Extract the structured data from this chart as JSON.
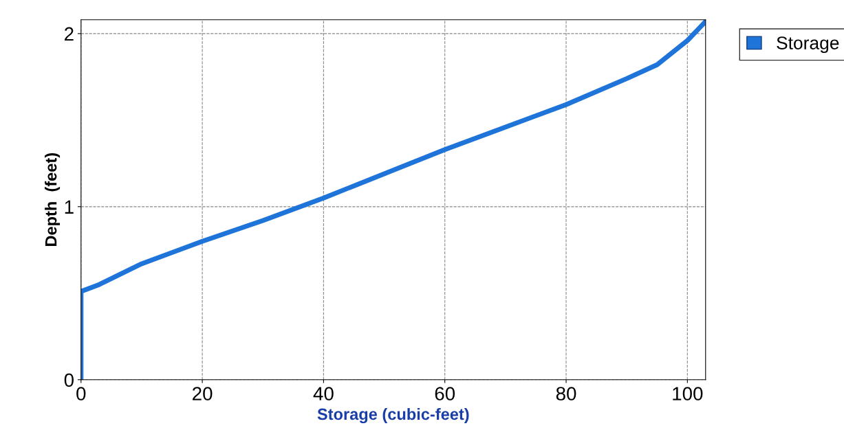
{
  "chart_data": {
    "type": "line",
    "xlabel": "Storage (cubic-feet)",
    "ylabel": "Depth  (feet)",
    "x": [
      0,
      0,
      3,
      10,
      20,
      30,
      40,
      50,
      60,
      70,
      80,
      90,
      95,
      100,
      103
    ],
    "series": [
      {
        "name": "Storage",
        "color": "#1f74d9",
        "values": [
          0,
          0.51,
          0.55,
          0.67,
          0.8,
          0.92,
          1.05,
          1.19,
          1.33,
          1.46,
          1.59,
          1.74,
          1.82,
          1.96,
          2.07
        ]
      }
    ],
    "xlim": [
      0,
      103
    ],
    "xticks": [
      0,
      20,
      40,
      60,
      80,
      100
    ],
    "ylim": [
      0,
      2.08
    ],
    "yticks": [
      0,
      1,
      2
    ],
    "grid": true,
    "legend": "top right",
    "marker": "none",
    "line_style": "solid"
  }
}
